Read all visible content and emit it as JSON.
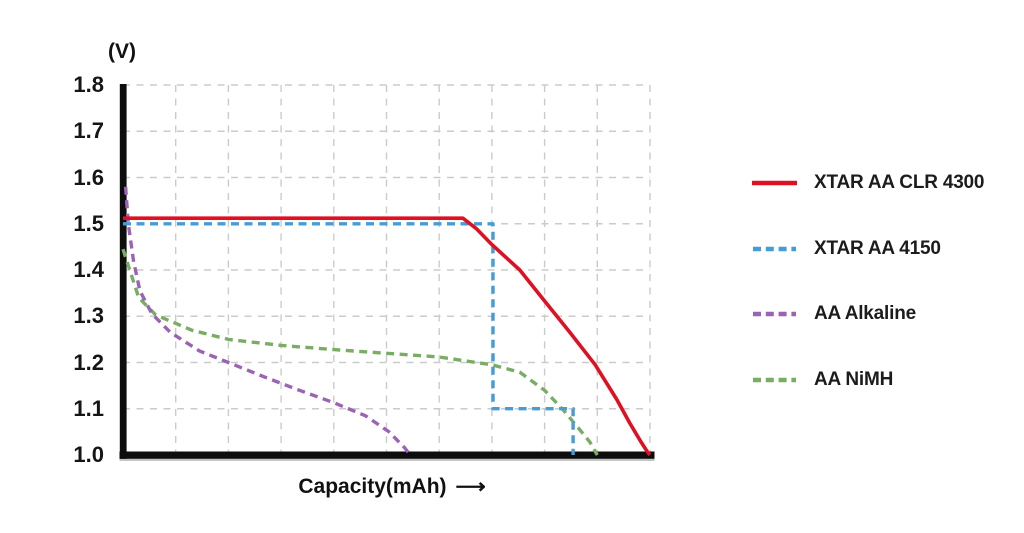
{
  "figure": {
    "y_unit_label": "(V)",
    "x_axis_label": "Capacity(mAh)",
    "x_axis_arrow": "⟶"
  },
  "colors": {
    "background": "#ffffff",
    "axis": "#0d0d0d",
    "axis_shadow": "#c4c4c4",
    "grid": "#cbcbcb",
    "text": "#151515"
  },
  "chart_data": {
    "type": "line",
    "title": "",
    "xlabel": "Capacity(mAh)",
    "ylabel": "(V)",
    "x_note": "x axis has no numeric tick labels; x values below are in grid-column units (0-10) left to right",
    "xlim": [
      0,
      10
    ],
    "ylim": [
      1.0,
      1.8
    ],
    "yticks": [
      "1.8",
      "1.7",
      "1.6",
      "1.5",
      "1.4",
      "1.3",
      "1.2",
      "1.1",
      "1.0"
    ],
    "grid": true,
    "legend_position": "right",
    "series": [
      {
        "name": "XTAR AA CLR 4300",
        "color": "#df1021",
        "style": "solid",
        "points": [
          [
            0,
            1.512
          ],
          [
            6.45,
            1.512
          ],
          [
            6.7,
            1.49
          ],
          [
            7.0,
            1.455
          ],
          [
            7.53,
            1.4
          ],
          [
            8.0,
            1.333
          ],
          [
            8.48,
            1.265
          ],
          [
            8.96,
            1.195
          ],
          [
            9.37,
            1.12
          ],
          [
            9.62,
            1.068
          ],
          [
            9.82,
            1.03
          ],
          [
            9.95,
            1.007
          ],
          [
            10,
            1.0
          ]
        ]
      },
      {
        "name": "XTAR AA 4150",
        "color": "#459dd7",
        "style": "dashed",
        "points": [
          [
            0,
            1.5
          ],
          [
            7.02,
            1.5
          ],
          [
            7.02,
            1.1
          ],
          [
            8.54,
            1.1
          ],
          [
            8.54,
            1.0
          ]
        ]
      },
      {
        "name": "AA Alkaline",
        "color": "#9b63b4",
        "style": "dashed",
        "points": [
          [
            0.05,
            1.58
          ],
          [
            0.1,
            1.5
          ],
          [
            0.2,
            1.42
          ],
          [
            0.32,
            1.355
          ],
          [
            0.55,
            1.305
          ],
          [
            0.9,
            1.265
          ],
          [
            1.45,
            1.225
          ],
          [
            2.0,
            1.2
          ],
          [
            2.7,
            1.168
          ],
          [
            3.35,
            1.14
          ],
          [
            4.0,
            1.113
          ],
          [
            4.6,
            1.085
          ],
          [
            5.05,
            1.05
          ],
          [
            5.35,
            1.015
          ],
          [
            5.45,
            1.0
          ]
        ]
      },
      {
        "name": "AA NiMH",
        "color": "#79ad63",
        "style": "dashed",
        "points": [
          [
            0,
            1.445
          ],
          [
            0.3,
            1.34
          ],
          [
            0.62,
            1.303
          ],
          [
            1.3,
            1.27
          ],
          [
            2.0,
            1.25
          ],
          [
            3.0,
            1.237
          ],
          [
            4.0,
            1.228
          ],
          [
            5.0,
            1.22
          ],
          [
            6.0,
            1.212
          ],
          [
            7.0,
            1.195
          ],
          [
            7.53,
            1.179
          ],
          [
            8.0,
            1.14
          ],
          [
            8.35,
            1.098
          ],
          [
            8.63,
            1.06
          ],
          [
            8.86,
            1.028
          ],
          [
            9.0,
            1.0
          ]
        ]
      }
    ]
  }
}
